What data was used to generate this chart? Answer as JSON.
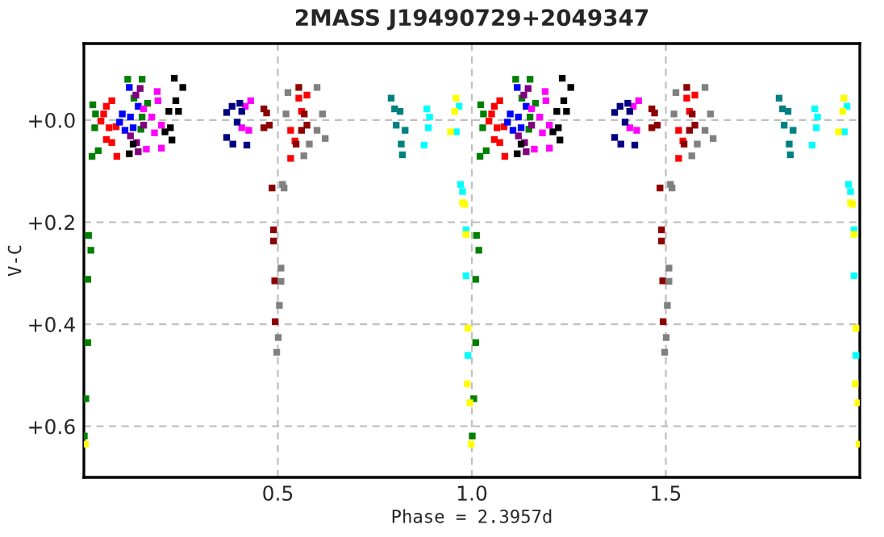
{
  "chart_data": {
    "type": "scatter",
    "title": "2MASS J19490729+2049347",
    "xlabel": "Phase = 2.3957d",
    "ylabel": "V-C",
    "xlim": [
      0,
      2.0
    ],
    "ylim": [
      0.7,
      -0.15
    ],
    "xticks": [
      {
        "value": 0.5,
        "label": "0.5"
      },
      {
        "value": 1.0,
        "label": "1.0"
      },
      {
        "value": 1.5,
        "label": "1.5"
      }
    ],
    "yticks": [
      {
        "value": 0.0,
        "label": "+0.0"
      },
      {
        "value": 0.2,
        "label": "+0.2"
      },
      {
        "value": 0.4,
        "label": "+0.4"
      },
      {
        "value": 0.6,
        "label": "+0.6"
      }
    ],
    "grid": true,
    "marker": "square",
    "legend": false,
    "series": [
      {
        "color": "#008000",
        "x": [
          0.023,
          0.03,
          0.028,
          0.037,
          0.021,
          0.113,
          0.129,
          0.15,
          0.147,
          0.164,
          0.15,
          0.012,
          0.018,
          0.01,
          0.01,
          0.005,
          0.001,
          1.023,
          1.03,
          1.028,
          1.037,
          1.021,
          1.113,
          1.129,
          1.15,
          1.147,
          1.164,
          1.15,
          1.012,
          1.018,
          1.01,
          1.01,
          1.005,
          1.001
        ],
        "values": [
          -0.03,
          -0.012,
          0.015,
          0.06,
          0.071,
          -0.08,
          -0.043,
          -0.006,
          0.018,
          -0.033,
          -0.08,
          0.226,
          0.255,
          0.312,
          0.436,
          0.546,
          0.619,
          -0.03,
          -0.012,
          0.015,
          0.06,
          0.071,
          -0.08,
          -0.043,
          -0.006,
          0.018,
          -0.033,
          -0.08,
          0.226,
          0.255,
          0.312,
          0.436,
          0.546,
          0.619
        ]
      },
      {
        "color": "#ff0000",
        "x": [
          0.072,
          0.058,
          0.044,
          0.083,
          0.058,
          0.085,
          0.072,
          0.065,
          0.051,
          0.554,
          0.533,
          0.575,
          0.544,
          0.533,
          0.561,
          1.072,
          1.058,
          1.044,
          1.083,
          1.058,
          1.085,
          1.072,
          1.065,
          1.051,
          1.554,
          1.533,
          1.575,
          1.544,
          1.533,
          1.561
        ],
        "values": [
          -0.038,
          -0.027,
          0.002,
          0.013,
          0.038,
          0.071,
          0.044,
          0.015,
          -0.012,
          -0.043,
          0.02,
          -0.049,
          0.041,
          0.075,
          -0.017,
          -0.038,
          -0.027,
          0.002,
          0.013,
          0.038,
          0.071,
          0.044,
          0.015,
          -0.012,
          -0.043,
          0.02,
          -0.049,
          0.041,
          0.075,
          -0.017
        ]
      },
      {
        "color": "#0000ff",
        "x": [
          0.117,
          0.099,
          0.12,
          0.106,
          0.127,
          0.14,
          0.092,
          1.117,
          1.099,
          1.12,
          1.106,
          1.127,
          1.14,
          1.092
        ],
        "values": [
          -0.064,
          -0.012,
          -0.006,
          0.02,
          0.015,
          -0.027,
          0.004,
          -0.064,
          -0.012,
          -0.006,
          0.02,
          0.015,
          -0.027,
          0.004
        ]
      },
      {
        "color": "#800080",
        "x": [
          0.145,
          0.134,
          0.154,
          0.136,
          0.14,
          0.12,
          1.145,
          1.134,
          1.154,
          1.136,
          1.14,
          1.12
        ],
        "values": [
          -0.062,
          -0.049,
          0.01,
          0.044,
          0.062,
          0.031,
          -0.062,
          -0.049,
          0.01,
          0.044,
          0.062,
          0.031
        ]
      },
      {
        "color": "#ff00ff",
        "x": [
          0.189,
          0.191,
          0.175,
          0.2,
          0.182,
          0.161,
          0.2,
          0.154,
          0.43,
          0.416,
          0.407,
          0.425,
          1.189,
          1.191,
          1.175,
          1.2,
          1.182,
          1.161,
          1.2,
          1.154,
          1.43,
          1.416,
          1.407,
          1.425
        ],
        "values": [
          -0.056,
          -0.038,
          -0.006,
          0.01,
          0.025,
          0.057,
          0.055,
          -0.022,
          -0.038,
          -0.027,
          0.015,
          0.02,
          -0.056,
          -0.038,
          -0.006,
          0.01,
          0.025,
          0.057,
          0.055,
          -0.022,
          -0.038,
          -0.027,
          0.015,
          0.02
        ]
      },
      {
        "color": "#000000",
        "x": [
          0.233,
          0.255,
          0.237,
          0.244,
          0.219,
          0.223,
          0.227,
          0.117,
          0.127,
          0.209,
          1.233,
          1.255,
          1.237,
          1.244,
          1.219,
          1.223,
          1.227,
          1.117,
          1.127,
          1.209
        ],
        "values": [
          -0.082,
          -0.064,
          -0.038,
          -0.017,
          -0.017,
          0.015,
          0.039,
          0.066,
          0.047,
          0.023,
          -0.082,
          -0.064,
          -0.038,
          -0.017,
          -0.017,
          0.015,
          0.039,
          0.066,
          0.047,
          0.023
        ]
      },
      {
        "color": "#000080",
        "x": [
          0.368,
          0.382,
          0.407,
          0.395,
          0.368,
          0.384,
          0.42,
          0.402,
          1.368,
          1.382,
          1.407,
          1.395,
          1.368,
          1.384,
          1.42,
          1.402
        ],
        "values": [
          -0.015,
          -0.027,
          -0.017,
          0.004,
          0.034,
          0.047,
          0.049,
          -0.033,
          -0.015,
          -0.027,
          -0.017,
          0.004,
          0.034,
          0.047,
          0.049,
          -0.033
        ]
      },
      {
        "color": "#8b0000",
        "x": [
          0.464,
          0.471,
          0.464,
          0.478,
          0.554,
          0.568,
          0.561,
          0.547,
          0.575,
          0.485,
          0.489,
          0.489,
          0.492,
          0.493,
          1.464,
          1.471,
          1.464,
          1.478,
          1.554,
          1.568,
          1.561,
          1.547,
          1.575,
          1.485,
          1.489,
          1.489,
          1.492,
          1.493
        ],
        "values": [
          -0.022,
          -0.014,
          0.015,
          0.01,
          -0.064,
          -0.012,
          0.02,
          0.047,
          0.01,
          0.133,
          0.215,
          0.237,
          0.315,
          0.395,
          -0.022,
          -0.014,
          0.015,
          0.01,
          -0.064,
          -0.012,
          0.02,
          0.047,
          0.01,
          0.133,
          0.215,
          0.237,
          0.315,
          0.395
        ]
      },
      {
        "color": "#808080",
        "x": [
          0.526,
          0.601,
          0.615,
          0.622,
          0.601,
          0.521,
          0.581,
          0.567,
          0.512,
          0.516,
          0.508,
          0.508,
          0.504,
          0.501,
          0.497,
          1.526,
          1.601,
          1.615,
          1.622,
          1.601,
          1.521,
          1.581,
          1.567,
          1.512,
          1.516,
          1.508,
          1.508,
          1.504,
          1.501,
          1.497
        ],
        "values": [
          -0.054,
          -0.064,
          -0.012,
          0.036,
          0.02,
          -0.012,
          0.047,
          0.07,
          0.126,
          0.133,
          0.29,
          0.316,
          0.363,
          0.426,
          0.455,
          -0.054,
          -0.064,
          -0.012,
          0.036,
          0.02,
          -0.012,
          0.047,
          0.07,
          0.126,
          0.133,
          0.29,
          0.316,
          0.363,
          0.426,
          0.455
        ]
      },
      {
        "color": "#008080",
        "x": [
          0.792,
          0.801,
          0.815,
          0.805,
          0.828,
          0.818,
          0.821,
          1.792,
          1.801,
          1.815,
          1.805,
          1.828,
          1.818,
          1.821
        ],
        "values": [
          -0.043,
          -0.022,
          -0.017,
          0.01,
          0.02,
          0.047,
          0.068,
          -0.043,
          -0.022,
          -0.017,
          0.01,
          0.02,
          0.047,
          0.068
        ]
      },
      {
        "color": "#00ffff",
        "x": [
          0.884,
          0.891,
          0.888,
          0.877,
          0.967,
          0.96,
          0.971,
          0.976,
          0.985,
          0.985,
          0.99,
          1.884,
          1.891,
          1.888,
          1.877,
          1.967,
          1.96,
          1.971,
          1.976,
          1.985,
          1.985,
          1.99
        ],
        "values": [
          -0.022,
          -0.006,
          0.015,
          0.049,
          -0.027,
          0.023,
          0.126,
          0.14,
          0.215,
          0.305,
          0.461,
          -0.022,
          -0.006,
          0.015,
          0.049,
          -0.027,
          0.023,
          0.126,
          0.14,
          0.215,
          0.305,
          0.461
        ]
      },
      {
        "color": "#ffff00",
        "x": [
          0.959,
          0.956,
          0.945,
          0.976,
          0.981,
          0.985,
          0.99,
          0.988,
          0.995,
          0.998,
          0.004,
          1.959,
          1.956,
          1.945,
          1.976,
          1.981,
          1.985,
          1.99,
          1.988,
          1.995,
          1.998
        ],
        "values": [
          -0.043,
          -0.017,
          0.023,
          0.162,
          0.165,
          0.224,
          0.408,
          0.517,
          0.554,
          0.635,
          0.635,
          -0.043,
          -0.017,
          0.023,
          0.162,
          0.165,
          0.224,
          0.408,
          0.517,
          0.554,
          0.635
        ]
      }
    ]
  }
}
